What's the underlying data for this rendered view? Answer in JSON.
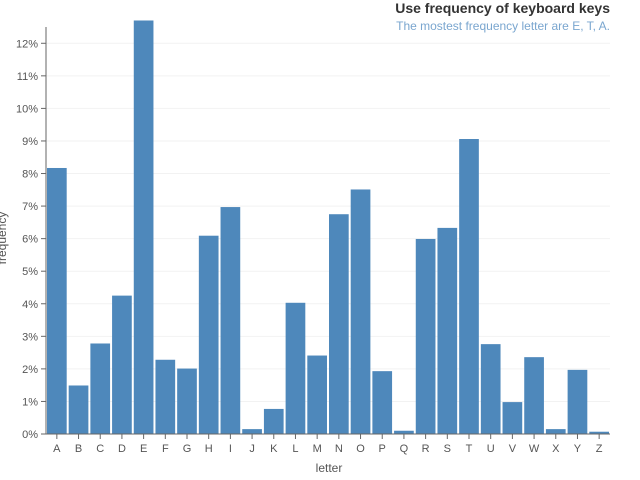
{
  "colors": {
    "bar": "#4e88bb",
    "title": "#333333",
    "subtitle": "#7aa6cf"
  },
  "chart_data": {
    "type": "bar",
    "title": "Use frequency of keyboard keys",
    "subtitle": "The mostest frequency letter are E, T, A.",
    "xlabel": "letter",
    "ylabel": "frequency",
    "ylim": [
      0,
      0.125
    ],
    "yticks": [
      0,
      0.01,
      0.02,
      0.03,
      0.04,
      0.05,
      0.06,
      0.07,
      0.08,
      0.09,
      0.1,
      0.11,
      0.12
    ],
    "ytick_labels": [
      "0%",
      "1%",
      "2%",
      "3%",
      "4%",
      "5%",
      "6%",
      "7%",
      "8%",
      "9%",
      "10%",
      "11%",
      "12%"
    ],
    "grid": true,
    "categories": [
      "A",
      "B",
      "C",
      "D",
      "E",
      "F",
      "G",
      "H",
      "I",
      "J",
      "K",
      "L",
      "M",
      "N",
      "O",
      "P",
      "Q",
      "R",
      "S",
      "T",
      "U",
      "V",
      "W",
      "X",
      "Y",
      "Z"
    ],
    "values": [
      0.0817,
      0.0149,
      0.0278,
      0.0425,
      0.127,
      0.0228,
      0.0201,
      0.0609,
      0.0697,
      0.0015,
      0.0077,
      0.0403,
      0.0241,
      0.0675,
      0.0751,
      0.0193,
      0.001,
      0.0599,
      0.0633,
      0.0906,
      0.0276,
      0.0098,
      0.0236,
      0.0015,
      0.0197,
      0.0007
    ]
  }
}
